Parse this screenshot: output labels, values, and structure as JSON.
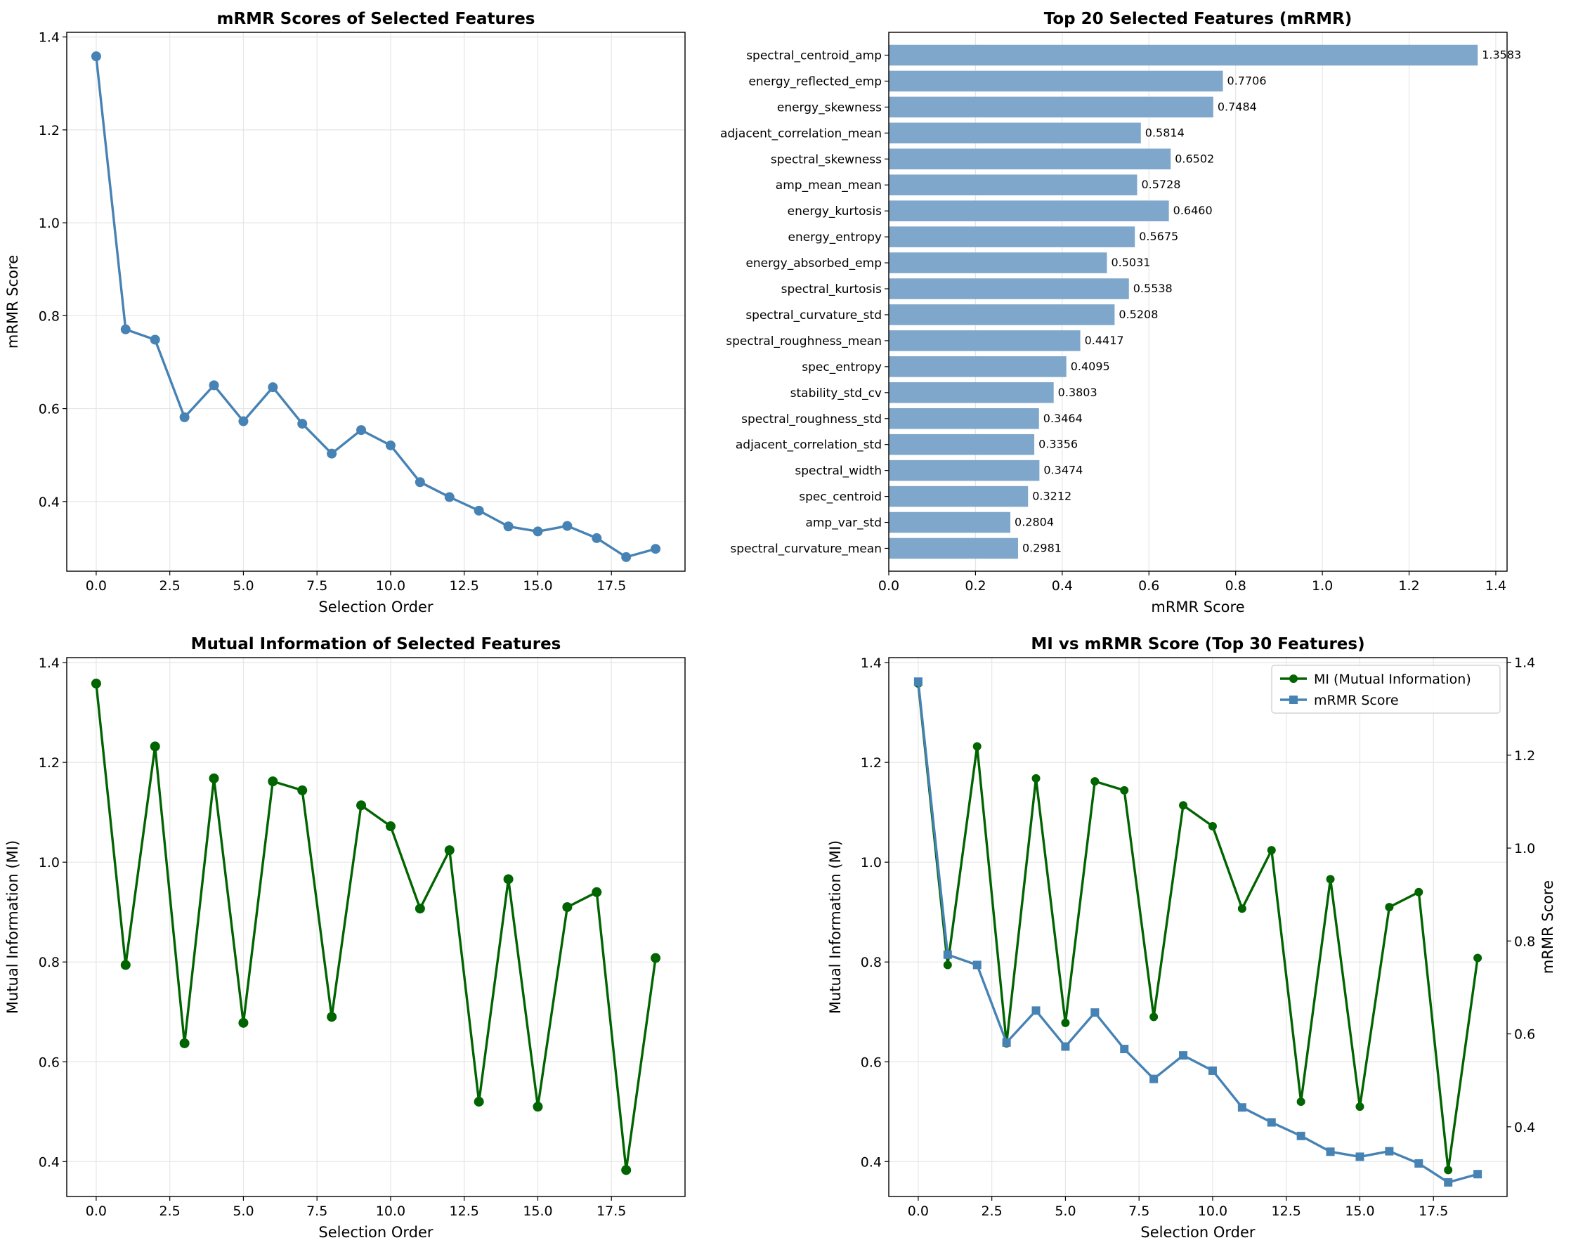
{
  "chart_data": [
    {
      "type": "line",
      "title": "mRMR Scores of Selected Features",
      "xlabel": "Selection Order",
      "ylabel": "mRMR Score",
      "xlim": [
        -1,
        20
      ],
      "ylim": [
        0.25,
        1.41
      ],
      "xticks": [
        0,
        2.5,
        5,
        7.5,
        10,
        12.5,
        15,
        17.5
      ],
      "xtick_labels": [
        "0.0",
        "2.5",
        "5.0",
        "7.5",
        "10.0",
        "12.5",
        "15.0",
        "17.5"
      ],
      "yticks": [
        0.4,
        0.6,
        0.8,
        1.0,
        1.2,
        1.4
      ],
      "ytick_labels": [
        "0.4",
        "0.6",
        "0.8",
        "1.0",
        "1.2",
        "1.4"
      ],
      "grid": true,
      "color": "#4682B4",
      "x": [
        0,
        1,
        2,
        3,
        4,
        5,
        6,
        7,
        8,
        9,
        10,
        11,
        12,
        13,
        14,
        15,
        16,
        17,
        18,
        19
      ],
      "values": [
        1.3583,
        0.7706,
        0.7484,
        0.5814,
        0.6502,
        0.5728,
        0.646,
        0.5675,
        0.5031,
        0.5538,
        0.5208,
        0.4417,
        0.4095,
        0.3803,
        0.3464,
        0.3356,
        0.3474,
        0.3212,
        0.2804,
        0.2981
      ]
    },
    {
      "type": "bar",
      "orientation": "horizontal",
      "title": "Top 20 Selected Features (mRMR)",
      "xlabel": "mRMR Score",
      "xlim": [
        0,
        1.426
      ],
      "xticks": [
        0,
        0.2,
        0.4,
        0.6,
        0.8,
        1.0,
        1.2,
        1.4
      ],
      "xtick_labels": [
        "0.0",
        "0.2",
        "0.4",
        "0.6",
        "0.8",
        "1.0",
        "1.2",
        "1.4"
      ],
      "grid": true,
      "color": "#7FA7CB",
      "categories": [
        "spectral_centroid_amp",
        "energy_reflected_emp",
        "energy_skewness",
        "adjacent_correlation_mean",
        "spectral_skewness",
        "amp_mean_mean",
        "energy_kurtosis",
        "energy_entropy",
        "energy_absorbed_emp",
        "spectral_kurtosis",
        "spectral_curvature_std",
        "spectral_roughness_mean",
        "spec_entropy",
        "stability_std_cv",
        "spectral_roughness_std",
        "adjacent_correlation_std",
        "spectral_width",
        "spec_centroid",
        "amp_var_std",
        "spectral_curvature_mean"
      ],
      "values": [
        1.3583,
        0.7706,
        0.7484,
        0.5814,
        0.6502,
        0.5728,
        0.646,
        0.5675,
        0.5031,
        0.5538,
        0.5208,
        0.4417,
        0.4095,
        0.3803,
        0.3464,
        0.3356,
        0.3474,
        0.3212,
        0.2804,
        0.2981
      ],
      "labels": [
        "1.3583",
        "0.7706",
        "0.7484",
        "0.5814",
        "0.6502",
        "0.5728",
        "0.6460",
        "0.5675",
        "0.5031",
        "0.5538",
        "0.5208",
        "0.4417",
        "0.4095",
        "0.3803",
        "0.3464",
        "0.3356",
        "0.3474",
        "0.3212",
        "0.2804",
        "0.2981"
      ]
    },
    {
      "type": "line",
      "title": "Mutual Information of Selected Features",
      "xlabel": "Selection Order",
      "ylabel": "Mutual Information (MI)",
      "xlim": [
        -1,
        20
      ],
      "ylim": [
        0.33,
        1.41
      ],
      "xticks": [
        0,
        2.5,
        5,
        7.5,
        10,
        12.5,
        15,
        17.5
      ],
      "xtick_labels": [
        "0.0",
        "2.5",
        "5.0",
        "7.5",
        "10.0",
        "12.5",
        "15.0",
        "17.5"
      ],
      "yticks": [
        0.4,
        0.6,
        0.8,
        1.0,
        1.2,
        1.4
      ],
      "ytick_labels": [
        "0.4",
        "0.6",
        "0.8",
        "1.0",
        "1.2",
        "1.4"
      ],
      "grid": true,
      "color": "#006400",
      "x": [
        0,
        1,
        2,
        3,
        4,
        5,
        6,
        7,
        8,
        9,
        10,
        11,
        12,
        13,
        14,
        15,
        16,
        17,
        18,
        19
      ],
      "values": [
        1.358,
        0.794,
        1.232,
        0.637,
        1.168,
        0.678,
        1.162,
        1.144,
        0.69,
        1.114,
        1.072,
        0.907,
        1.024,
        0.52,
        0.966,
        0.51,
        0.91,
        0.94,
        0.383,
        0.808
      ]
    },
    {
      "type": "line",
      "title": "MI vs mRMR Score (Top 30 Features)",
      "xlabel": "Selection Order",
      "ylabel": "Mutual Information (MI)",
      "ylabel_right": "mRMR Score",
      "xlim": [
        -1,
        20
      ],
      "ylim": [
        0.33,
        1.41
      ],
      "ylim_right": [
        0.25,
        1.41
      ],
      "xticks": [
        0,
        2.5,
        5,
        7.5,
        10,
        12.5,
        15,
        17.5
      ],
      "xtick_labels": [
        "0.0",
        "2.5",
        "5.0",
        "7.5",
        "10.0",
        "12.5",
        "15.0",
        "17.5"
      ],
      "yticks": [
        0.4,
        0.6,
        0.8,
        1.0,
        1.2,
        1.4
      ],
      "ytick_labels": [
        "0.4",
        "0.6",
        "0.8",
        "1.0",
        "1.2",
        "1.4"
      ],
      "yticks_right": [
        0.4,
        0.6,
        0.8,
        1.0,
        1.2,
        1.4
      ],
      "ytick_labels_right": [
        "0.4",
        "0.6",
        "0.8",
        "1.0",
        "1.2",
        "1.4"
      ],
      "grid": true,
      "legend_position": "top-right",
      "x": [
        0,
        1,
        2,
        3,
        4,
        5,
        6,
        7,
        8,
        9,
        10,
        11,
        12,
        13,
        14,
        15,
        16,
        17,
        18,
        19
      ],
      "series": [
        {
          "name": "MI (Mutual Information)",
          "axis": "left",
          "color": "#006400",
          "marker": "circle",
          "values": [
            1.358,
            0.794,
            1.232,
            0.637,
            1.168,
            0.678,
            1.162,
            1.144,
            0.69,
            1.114,
            1.072,
            0.907,
            1.024,
            0.52,
            0.966,
            0.51,
            0.91,
            0.94,
            0.383,
            0.808
          ]
        },
        {
          "name": "mRMR Score",
          "axis": "right",
          "color": "#4682B4",
          "marker": "square",
          "values": [
            1.3583,
            0.7706,
            0.7484,
            0.5814,
            0.6502,
            0.5728,
            0.646,
            0.5675,
            0.5031,
            0.5538,
            0.5208,
            0.4417,
            0.4095,
            0.3803,
            0.3464,
            0.3356,
            0.3474,
            0.3212,
            0.2804,
            0.2981
          ]
        }
      ]
    }
  ]
}
